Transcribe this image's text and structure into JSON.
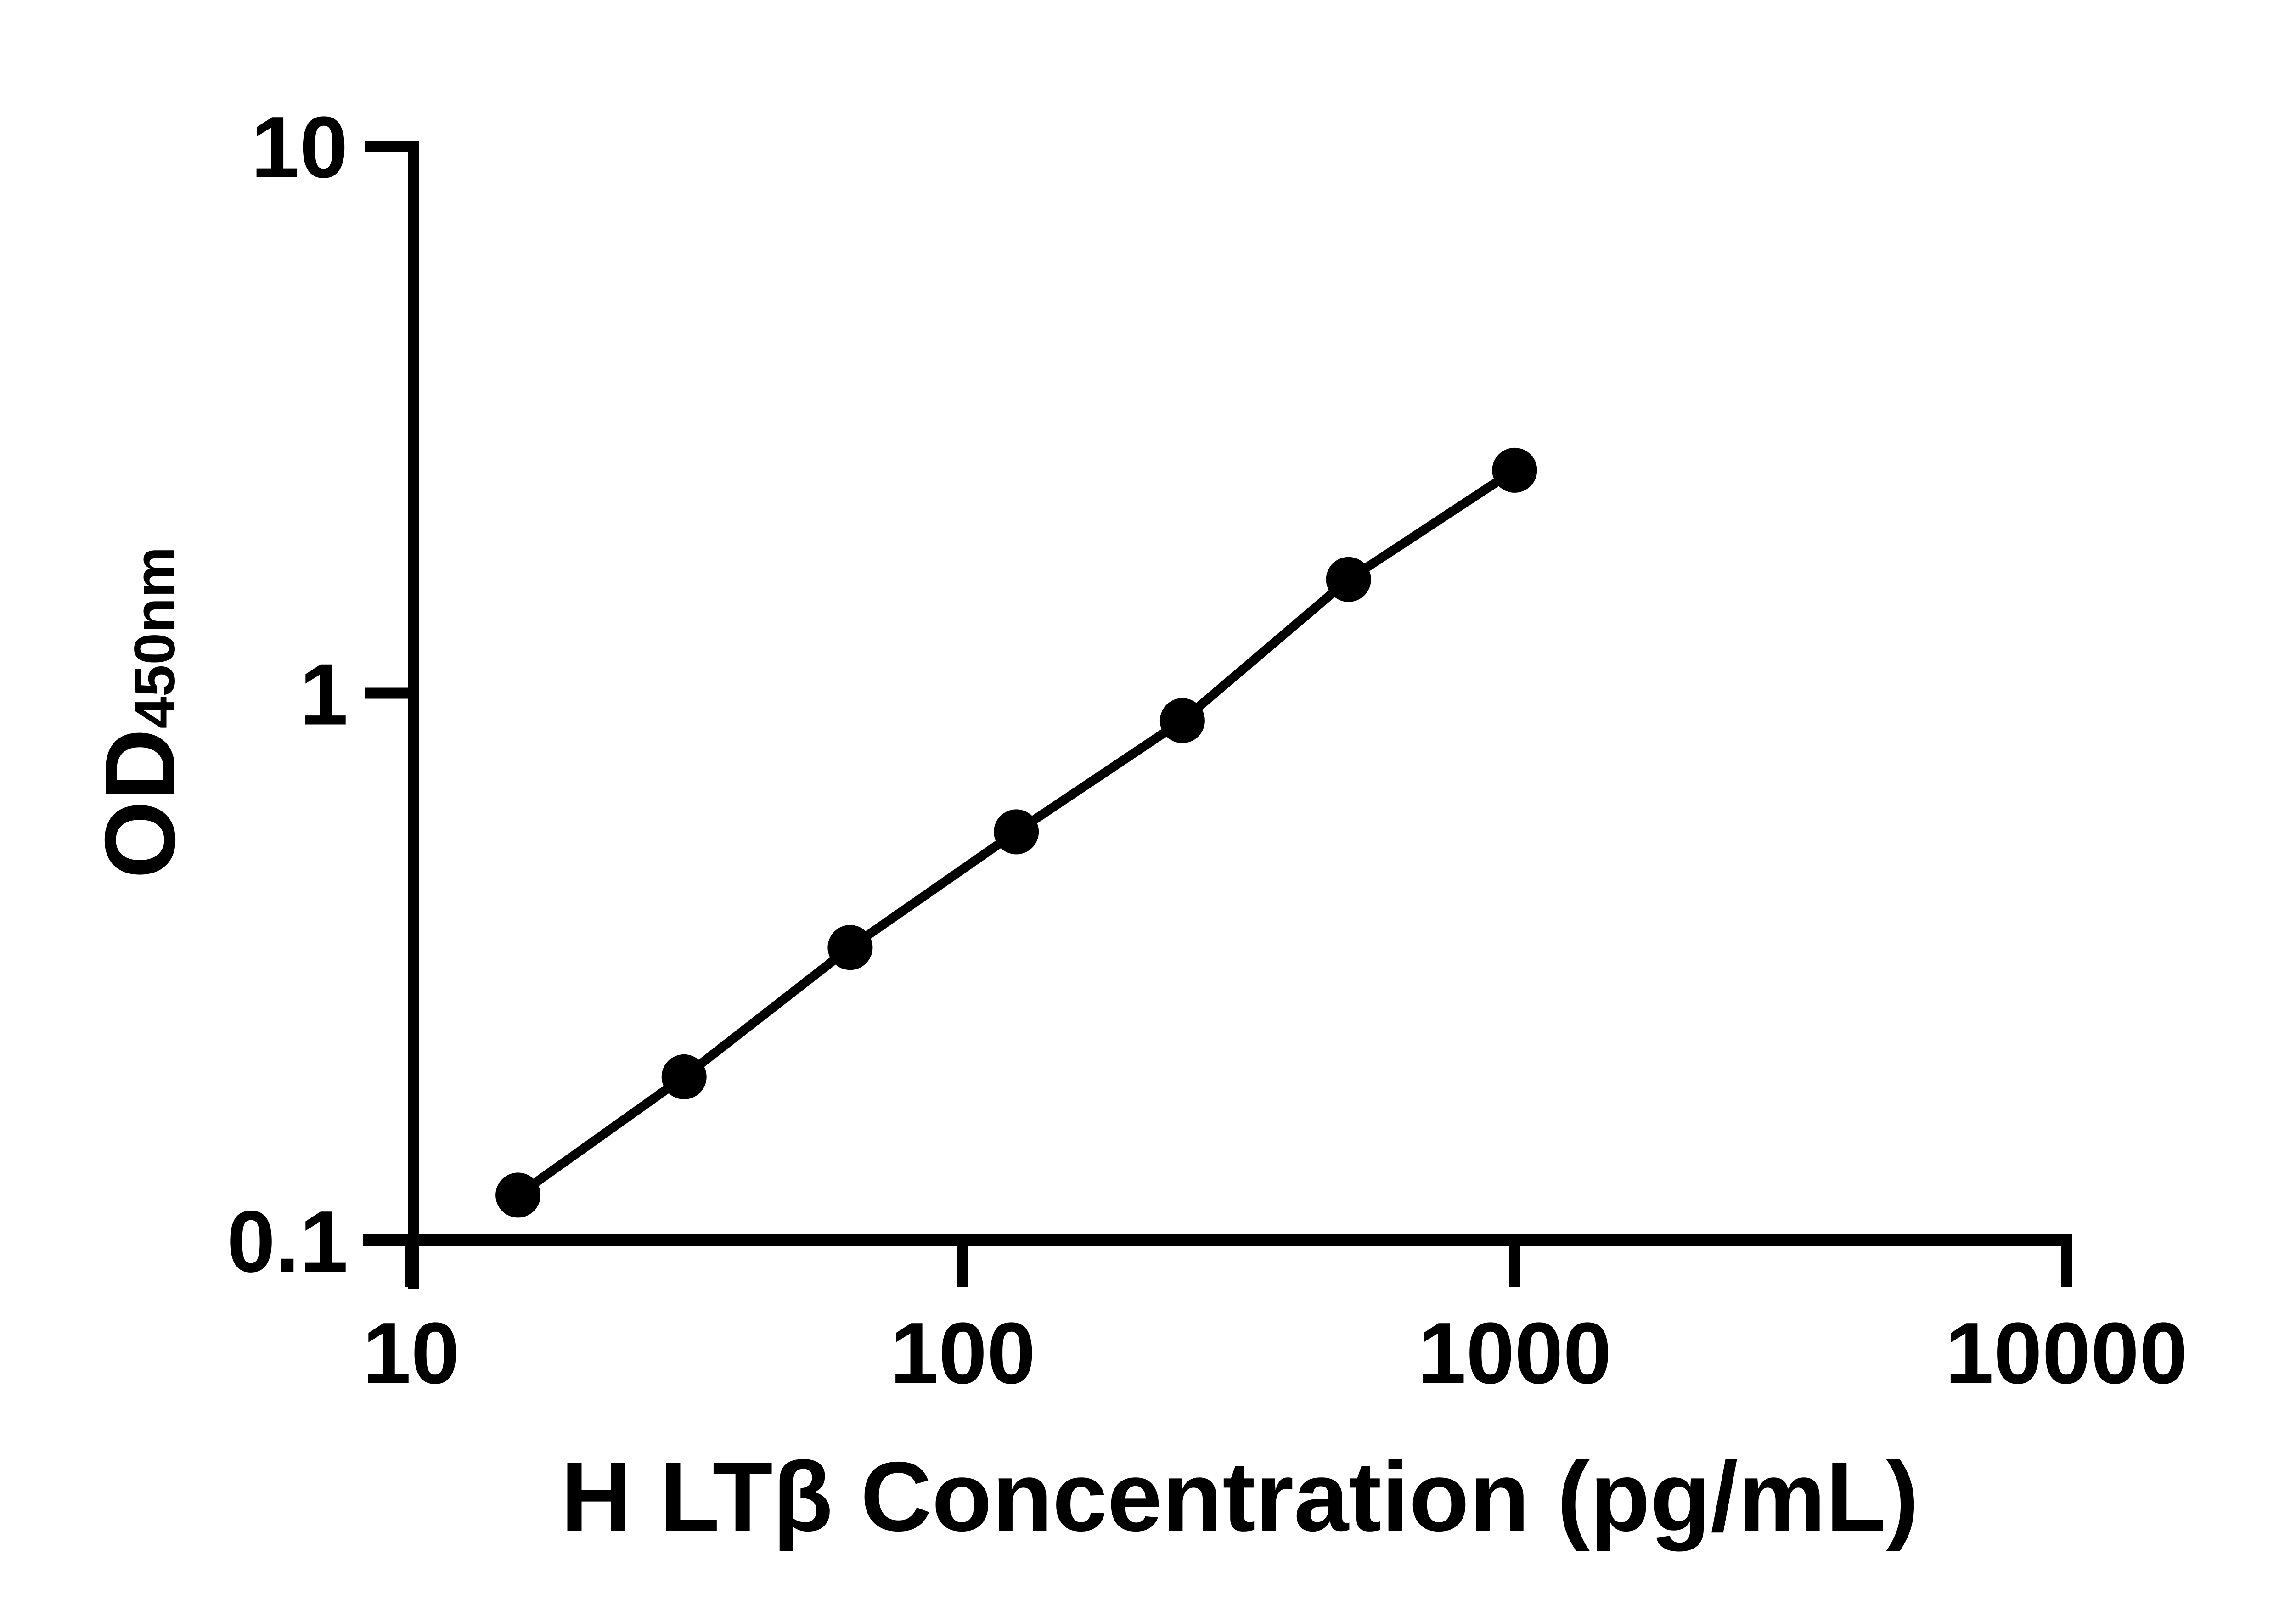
{
  "figure": {
    "background_color": "#ffffff",
    "ink_color": "#000000"
  },
  "chart_data": {
    "type": "line",
    "title": "",
    "xlabel": "H LTβ Concentration (pg/mL)",
    "ylabel": "OD450nm",
    "ylabel_main": "OD",
    "ylabel_sub": "450nm",
    "x_scale": "log10",
    "y_scale": "log10",
    "xlim": [
      10,
      10000
    ],
    "ylim": [
      0.1,
      10
    ],
    "x_tick_labels": [
      "10",
      "100",
      "1000",
      "10000"
    ],
    "x_tick_values": [
      10,
      100,
      1000,
      10000
    ],
    "y_tick_labels": [
      "0.1",
      "1",
      "10"
    ],
    "y_tick_values": [
      0.1,
      1,
      10
    ],
    "grid": false,
    "legend": null,
    "series": [
      {
        "name": "standard-curve",
        "marker": "filled-circle",
        "color": "#000000",
        "x": [
          15.63,
          31.25,
          62.5,
          125,
          250,
          500,
          1000
        ],
        "y": [
          0.121,
          0.199,
          0.343,
          0.558,
          0.891,
          1.614,
          2.556
        ]
      }
    ]
  }
}
